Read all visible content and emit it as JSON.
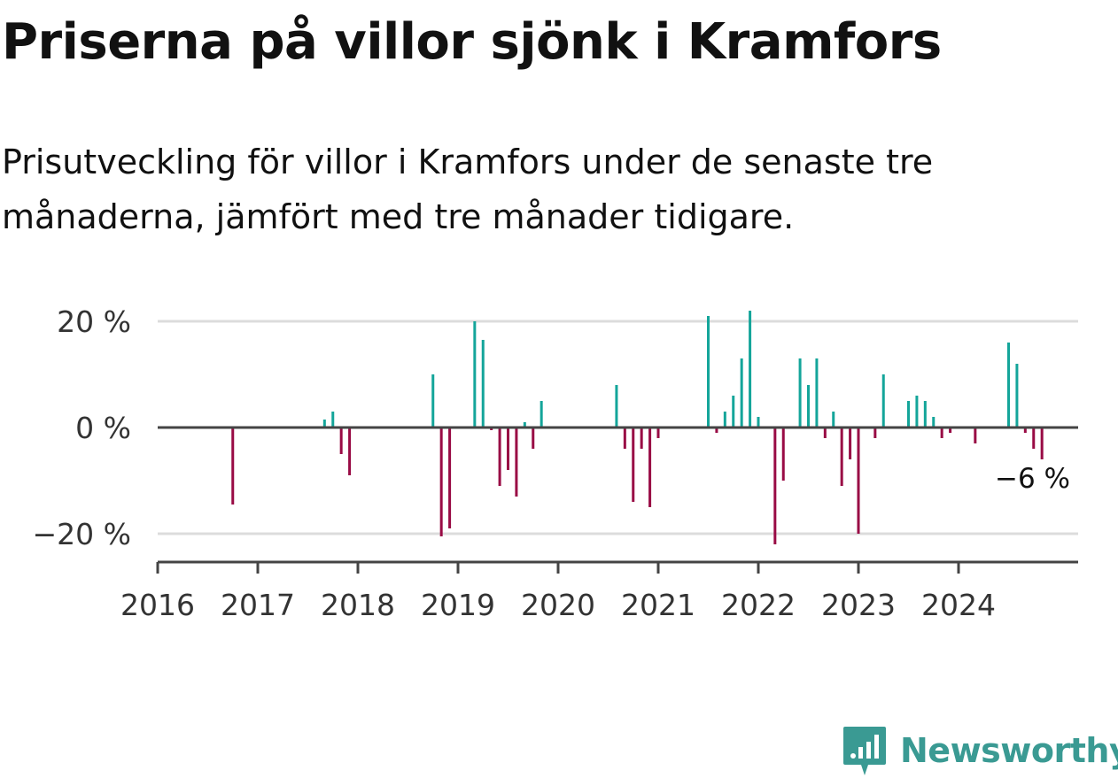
{
  "header": {
    "title": "Priserna på villor sjönk i Kramfors",
    "subtitle": "Prisutveckling för villor i Kramfors under de senaste tre månaderna, jämfört med tre månader tidigare."
  },
  "branding": {
    "name": "Newsworthy",
    "color": "#3a9a93",
    "logo_icon": "bar-chart-badge-icon"
  },
  "chart_data": {
    "type": "bar",
    "x_axis": {
      "type": "date",
      "ticks": [
        "2016",
        "2017",
        "2018",
        "2019",
        "2020",
        "2021",
        "2022",
        "2023",
        "2024"
      ]
    },
    "y_axis": {
      "ticks": [
        20,
        0,
        -20
      ],
      "tick_labels": [
        "20 %",
        "0 %",
        "−20 %"
      ],
      "ylim": [
        -25,
        23
      ]
    },
    "grid": true,
    "colors": {
      "positive": "#14a59a",
      "negative": "#990b45"
    },
    "end_label": "−6 %",
    "series": [
      {
        "points": [
          {
            "x": "2016-10",
            "y": -14.5
          },
          {
            "x": "2017-09",
            "y": 1.5
          },
          {
            "x": "2017-10",
            "y": 3
          },
          {
            "x": "2017-11",
            "y": -5
          },
          {
            "x": "2017-12",
            "y": -9
          },
          {
            "x": "2018-10",
            "y": 10
          },
          {
            "x": "2018-11",
            "y": -20.5
          },
          {
            "x": "2018-12",
            "y": -19
          },
          {
            "x": "2019-03",
            "y": 20
          },
          {
            "x": "2019-04",
            "y": 16.5
          },
          {
            "x": "2019-05",
            "y": -0.5
          },
          {
            "x": "2019-06",
            "y": -11
          },
          {
            "x": "2019-07",
            "y": -8
          },
          {
            "x": "2019-08",
            "y": -13
          },
          {
            "x": "2019-09",
            "y": 1
          },
          {
            "x": "2019-10",
            "y": -4
          },
          {
            "x": "2019-11",
            "y": 5
          },
          {
            "x": "2020-08",
            "y": 8
          },
          {
            "x": "2020-09",
            "y": -4
          },
          {
            "x": "2020-10",
            "y": -14
          },
          {
            "x": "2020-11",
            "y": -4
          },
          {
            "x": "2020-12",
            "y": -15
          },
          {
            "x": "2021-01",
            "y": -2
          },
          {
            "x": "2021-07",
            "y": 21
          },
          {
            "x": "2021-08",
            "y": -1
          },
          {
            "x": "2021-09",
            "y": 3
          },
          {
            "x": "2021-10",
            "y": 6
          },
          {
            "x": "2021-11",
            "y": 13
          },
          {
            "x": "2021-12",
            "y": 22
          },
          {
            "x": "2022-01",
            "y": 2
          },
          {
            "x": "2022-03",
            "y": -22
          },
          {
            "x": "2022-04",
            "y": -10
          },
          {
            "x": "2022-06",
            "y": 13
          },
          {
            "x": "2022-07",
            "y": 8
          },
          {
            "x": "2022-08",
            "y": 13
          },
          {
            "x": "2022-09",
            "y": -2
          },
          {
            "x": "2022-10",
            "y": 3
          },
          {
            "x": "2022-11",
            "y": -11
          },
          {
            "x": "2022-12",
            "y": -6
          },
          {
            "x": "2023-01",
            "y": -20
          },
          {
            "x": "2023-03",
            "y": -2
          },
          {
            "x": "2023-04",
            "y": 10
          },
          {
            "x": "2023-07",
            "y": 5
          },
          {
            "x": "2023-08",
            "y": 6
          },
          {
            "x": "2023-09",
            "y": 5
          },
          {
            "x": "2023-10",
            "y": 2
          },
          {
            "x": "2023-11",
            "y": -2
          },
          {
            "x": "2023-12",
            "y": -1
          },
          {
            "x": "2024-03",
            "y": -3
          },
          {
            "x": "2024-07",
            "y": 16
          },
          {
            "x": "2024-08",
            "y": 12
          },
          {
            "x": "2024-09",
            "y": -1
          },
          {
            "x": "2024-10",
            "y": -4
          },
          {
            "x": "2024-11",
            "y": -6
          }
        ]
      }
    ]
  }
}
